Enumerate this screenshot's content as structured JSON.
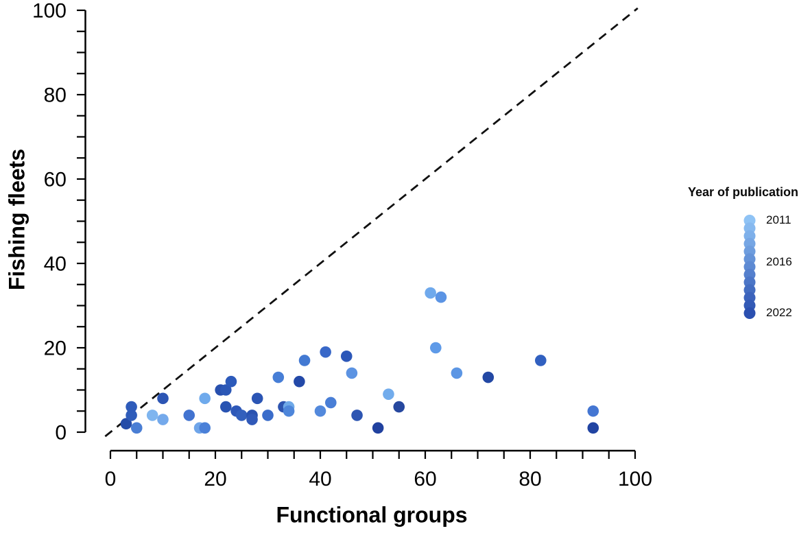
{
  "chart_data": {
    "type": "scatter",
    "title": "",
    "xlabel": "Functional groups",
    "ylabel": "Fishing fleets",
    "xlim": [
      0,
      100
    ],
    "ylim": [
      0,
      100
    ],
    "x_tick_labels": [
      "0",
      "20",
      "40",
      "60",
      "80",
      "100"
    ],
    "y_tick_labels": [
      "0",
      "20",
      "40",
      "60",
      "80",
      "100"
    ],
    "minor_tick_step": 5,
    "grid": "off",
    "axis_color": "#000000",
    "reference_line": {
      "type": "identity",
      "style": "dashed",
      "color": "#111111",
      "from": [
        0,
        0
      ],
      "to": [
        100,
        100
      ]
    },
    "legend": {
      "title": "Year of publication",
      "position": "right",
      "tick_labels": [
        "2011",
        "2016",
        "2022"
      ],
      "scale_top_color": "#8FC3F5",
      "scale_bottom_color": "#2B50B0",
      "dot_count": 13
    },
    "points": [
      {
        "x": 3,
        "y": 2,
        "color": "#254CA8"
      },
      {
        "x": 4,
        "y": 4,
        "color": "#2F5CBA"
      },
      {
        "x": 4,
        "y": 6,
        "color": "#2E5BBA"
      },
      {
        "x": 5,
        "y": 1,
        "color": "#4A7ED4"
      },
      {
        "x": 8,
        "y": 4,
        "color": "#7FB5EF"
      },
      {
        "x": 10,
        "y": 3,
        "color": "#74A9EB"
      },
      {
        "x": 10,
        "y": 8,
        "color": "#2C55B4"
      },
      {
        "x": 15,
        "y": 4,
        "color": "#4273D0"
      },
      {
        "x": 17,
        "y": 1,
        "color": "#6FA5E9"
      },
      {
        "x": 18,
        "y": 1,
        "color": "#4A80D8"
      },
      {
        "x": 18,
        "y": 8,
        "color": "#6FAAEC"
      },
      {
        "x": 21,
        "y": 10,
        "color": "#2850AE"
      },
      {
        "x": 22,
        "y": 10,
        "color": "#2B57B6"
      },
      {
        "x": 22,
        "y": 6,
        "color": "#2853B2"
      },
      {
        "x": 23,
        "y": 12,
        "color": "#2C5ABA"
      },
      {
        "x": 24,
        "y": 5,
        "color": "#2E58B8"
      },
      {
        "x": 25,
        "y": 4,
        "color": "#335FBC"
      },
      {
        "x": 27,
        "y": 4,
        "color": "#2A52B0"
      },
      {
        "x": 27,
        "y": 3,
        "color": "#3059B8"
      },
      {
        "x": 28,
        "y": 8,
        "color": "#2B55B4"
      },
      {
        "x": 30,
        "y": 4,
        "color": "#3A6CCA"
      },
      {
        "x": 32,
        "y": 13,
        "color": "#477ED6"
      },
      {
        "x": 33,
        "y": 6,
        "color": "#2D54B0"
      },
      {
        "x": 34,
        "y": 6,
        "color": "#6FA9E8"
      },
      {
        "x": 34,
        "y": 5,
        "color": "#4E86DA"
      },
      {
        "x": 36,
        "y": 12,
        "color": "#2349A8"
      },
      {
        "x": 37,
        "y": 17,
        "color": "#4379D2"
      },
      {
        "x": 40,
        "y": 5,
        "color": "#5389DC"
      },
      {
        "x": 41,
        "y": 19,
        "color": "#3968C8"
      },
      {
        "x": 42,
        "y": 7,
        "color": "#497ED6"
      },
      {
        "x": 45,
        "y": 18,
        "color": "#2C57B8"
      },
      {
        "x": 46,
        "y": 14,
        "color": "#5C93E2"
      },
      {
        "x": 47,
        "y": 4,
        "color": "#2D55B2"
      },
      {
        "x": 51,
        "y": 1,
        "color": "#21419F"
      },
      {
        "x": 53,
        "y": 9,
        "color": "#72ACEC"
      },
      {
        "x": 55,
        "y": 6,
        "color": "#27489F"
      },
      {
        "x": 61,
        "y": 33,
        "color": "#6FA9EC"
      },
      {
        "x": 62,
        "y": 20,
        "color": "#5E9AE8"
      },
      {
        "x": 63,
        "y": 32,
        "color": "#5B94E4"
      },
      {
        "x": 66,
        "y": 14,
        "color": "#5C96E4"
      },
      {
        "x": 72,
        "y": 13,
        "color": "#2348A4"
      },
      {
        "x": 82,
        "y": 17,
        "color": "#3160C0"
      },
      {
        "x": 92,
        "y": 5,
        "color": "#4476D2"
      },
      {
        "x": 92,
        "y": 1,
        "color": "#2144A2"
      }
    ]
  }
}
